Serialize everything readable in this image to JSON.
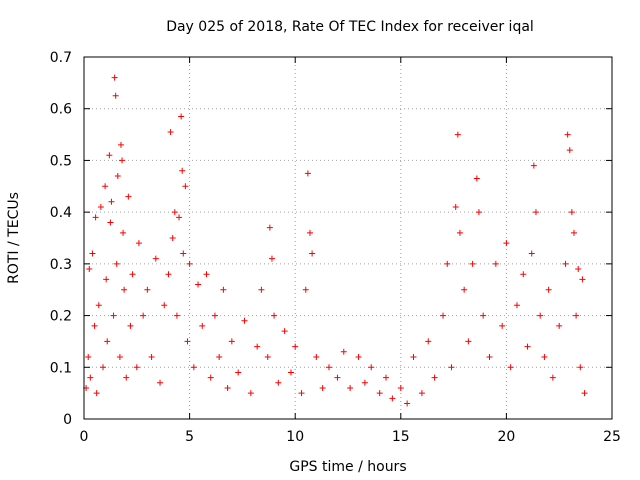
{
  "chart_data": {
    "type": "scatter",
    "title": "Day 025 of 2018, Rate Of TEC Index for receiver iqal",
    "xlabel": "GPS time / hours",
    "ylabel": "ROTI / TECUs",
    "xlim": [
      0,
      25
    ],
    "ylim": [
      0,
      0.7
    ],
    "xticks": [
      0,
      5,
      10,
      15,
      20,
      25
    ],
    "xtick_labels": [
      "0",
      "5",
      "10",
      "15",
      "20",
      "25"
    ],
    "yticks": [
      0,
      0.1,
      0.2,
      0.3,
      0.4,
      0.5,
      0.6,
      0.7
    ],
    "ytick_labels": [
      "0",
      "0.1",
      "0.2",
      "0.3",
      "0.4",
      "0.5",
      "0.6",
      "0.7"
    ],
    "grid": true,
    "marker": "+",
    "color": "#ff0000",
    "series": [
      {
        "name": "ROTI",
        "points": [
          [
            0.1,
            0.06
          ],
          [
            0.2,
            0.12
          ],
          [
            0.25,
            0.29
          ],
          [
            0.3,
            0.08
          ],
          [
            0.4,
            0.32
          ],
          [
            0.5,
            0.18
          ],
          [
            0.55,
            0.39
          ],
          [
            0.6,
            0.05
          ],
          [
            0.7,
            0.22
          ],
          [
            0.8,
            0.41
          ],
          [
            0.9,
            0.1
          ],
          [
            1.0,
            0.45
          ],
          [
            1.05,
            0.27
          ],
          [
            1.1,
            0.15
          ],
          [
            1.2,
            0.51
          ],
          [
            1.25,
            0.38
          ],
          [
            1.3,
            0.42
          ],
          [
            1.4,
            0.2
          ],
          [
            1.45,
            0.66
          ],
          [
            1.5,
            0.625
          ],
          [
            1.55,
            0.3
          ],
          [
            1.6,
            0.47
          ],
          [
            1.7,
            0.12
          ],
          [
            1.75,
            0.53
          ],
          [
            1.8,
            0.5
          ],
          [
            1.85,
            0.36
          ],
          [
            1.9,
            0.25
          ],
          [
            2.0,
            0.08
          ],
          [
            2.1,
            0.43
          ],
          [
            2.2,
            0.18
          ],
          [
            2.3,
            0.28
          ],
          [
            2.5,
            0.1
          ],
          [
            2.6,
            0.34
          ],
          [
            2.8,
            0.2
          ],
          [
            3.0,
            0.25
          ],
          [
            3.2,
            0.12
          ],
          [
            3.4,
            0.31
          ],
          [
            3.6,
            0.07
          ],
          [
            3.8,
            0.22
          ],
          [
            4.0,
            0.28
          ],
          [
            4.1,
            0.555
          ],
          [
            4.2,
            0.35
          ],
          [
            4.3,
            0.4
          ],
          [
            4.4,
            0.2
          ],
          [
            4.5,
            0.39
          ],
          [
            4.6,
            0.585
          ],
          [
            4.65,
            0.48
          ],
          [
            4.7,
            0.32
          ],
          [
            4.8,
            0.45
          ],
          [
            4.9,
            0.15
          ],
          [
            5.0,
            0.3
          ],
          [
            5.2,
            0.1
          ],
          [
            5.4,
            0.26
          ],
          [
            5.6,
            0.18
          ],
          [
            5.8,
            0.28
          ],
          [
            6.0,
            0.08
          ],
          [
            6.2,
            0.2
          ],
          [
            6.4,
            0.12
          ],
          [
            6.6,
            0.25
          ],
          [
            6.8,
            0.06
          ],
          [
            7.0,
            0.15
          ],
          [
            7.3,
            0.09
          ],
          [
            7.6,
            0.19
          ],
          [
            7.9,
            0.05
          ],
          [
            8.2,
            0.14
          ],
          [
            8.4,
            0.25
          ],
          [
            8.7,
            0.12
          ],
          [
            8.8,
            0.37
          ],
          [
            8.9,
            0.31
          ],
          [
            9.0,
            0.2
          ],
          [
            9.2,
            0.07
          ],
          [
            9.5,
            0.17
          ],
          [
            9.8,
            0.09
          ],
          [
            10.0,
            0.14
          ],
          [
            10.3,
            0.05
          ],
          [
            10.5,
            0.25
          ],
          [
            10.6,
            0.475
          ],
          [
            10.7,
            0.36
          ],
          [
            10.8,
            0.32
          ],
          [
            11.0,
            0.12
          ],
          [
            11.3,
            0.06
          ],
          [
            11.6,
            0.1
          ],
          [
            12.0,
            0.08
          ],
          [
            12.3,
            0.13
          ],
          [
            12.6,
            0.06
          ],
          [
            13.0,
            0.12
          ],
          [
            13.3,
            0.07
          ],
          [
            13.6,
            0.1
          ],
          [
            14.0,
            0.05
          ],
          [
            14.3,
            0.08
          ],
          [
            14.6,
            0.04
          ],
          [
            15.0,
            0.06
          ],
          [
            15.3,
            0.03
          ],
          [
            15.6,
            0.12
          ],
          [
            16.0,
            0.05
          ],
          [
            16.3,
            0.15
          ],
          [
            16.6,
            0.08
          ],
          [
            17.0,
            0.2
          ],
          [
            17.2,
            0.3
          ],
          [
            17.4,
            0.1
          ],
          [
            17.6,
            0.41
          ],
          [
            17.7,
            0.55
          ],
          [
            17.8,
            0.36
          ],
          [
            18.0,
            0.25
          ],
          [
            18.2,
            0.15
          ],
          [
            18.4,
            0.3
          ],
          [
            18.6,
            0.465
          ],
          [
            18.7,
            0.4
          ],
          [
            18.9,
            0.2
          ],
          [
            19.2,
            0.12
          ],
          [
            19.5,
            0.3
          ],
          [
            19.8,
            0.18
          ],
          [
            20.0,
            0.34
          ],
          [
            20.2,
            0.1
          ],
          [
            20.5,
            0.22
          ],
          [
            20.8,
            0.28
          ],
          [
            21.0,
            0.14
          ],
          [
            21.2,
            0.32
          ],
          [
            21.3,
            0.49
          ],
          [
            21.4,
            0.4
          ],
          [
            21.6,
            0.2
          ],
          [
            21.8,
            0.12
          ],
          [
            22.0,
            0.25
          ],
          [
            22.2,
            0.08
          ],
          [
            22.5,
            0.18
          ],
          [
            22.8,
            0.3
          ],
          [
            22.9,
            0.55
          ],
          [
            23.0,
            0.52
          ],
          [
            23.1,
            0.4
          ],
          [
            23.2,
            0.36
          ],
          [
            23.3,
            0.2
          ],
          [
            23.4,
            0.29
          ],
          [
            23.5,
            0.1
          ],
          [
            23.6,
            0.27
          ],
          [
            23.7,
            0.05
          ]
        ]
      }
    ]
  }
}
